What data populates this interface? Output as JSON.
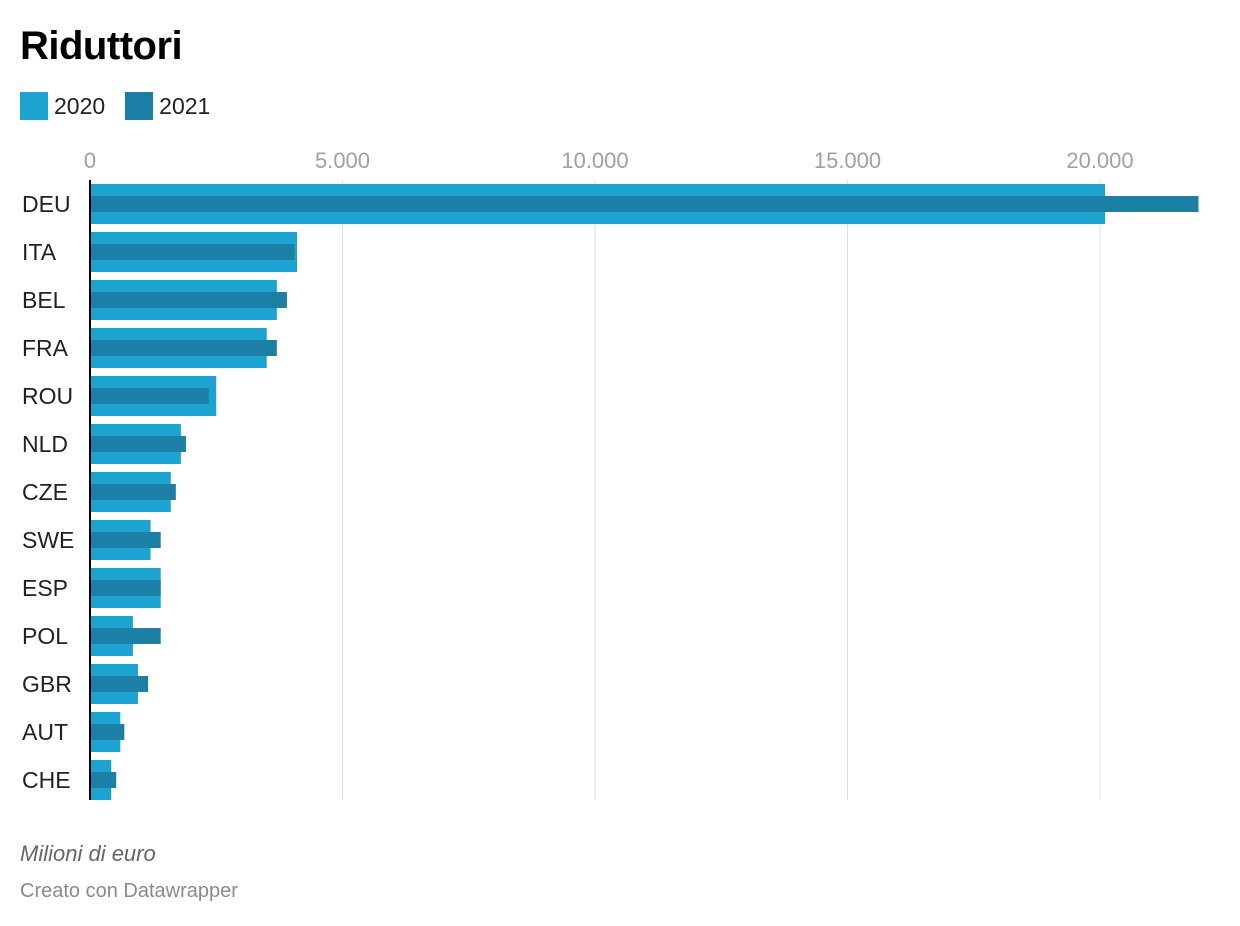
{
  "colors": {
    "series_2020": "#1ba3d2",
    "series_2021": "#1c80a6",
    "grid": "#dddddd",
    "tick_label": "#a0a0a0",
    "category_label": "#222222",
    "axis_line": "#000000"
  },
  "chart_data": {
    "type": "bar",
    "orientation": "horizontal",
    "title": "Riduttori",
    "xlabel": "",
    "ylabel": "",
    "xlim": [
      0,
      22000
    ],
    "x_ticks": [
      0,
      5000,
      10000,
      15000,
      20000
    ],
    "x_tick_labels": [
      "0",
      "5.000",
      "10.000",
      "15.000",
      "20.000"
    ],
    "grid": true,
    "legend_position": "top-left",
    "categories": [
      "DEU",
      "ITA",
      "BEL",
      "FRA",
      "ROU",
      "NLD",
      "CZE",
      "SWE",
      "ESP",
      "POL",
      "GBR",
      "AUT",
      "CHE"
    ],
    "series": [
      {
        "name": "2020",
        "values": [
          20100,
          4100,
          3700,
          3500,
          2500,
          1800,
          1600,
          1200,
          1400,
          850,
          950,
          600,
          420
        ]
      },
      {
        "name": "2021",
        "values": [
          21950,
          4050,
          3900,
          3700,
          2350,
          1900,
          1700,
          1400,
          1400,
          1400,
          1150,
          680,
          520
        ]
      }
    ],
    "note": "Milioni di euro",
    "credit": "Creato con Datawrapper"
  }
}
